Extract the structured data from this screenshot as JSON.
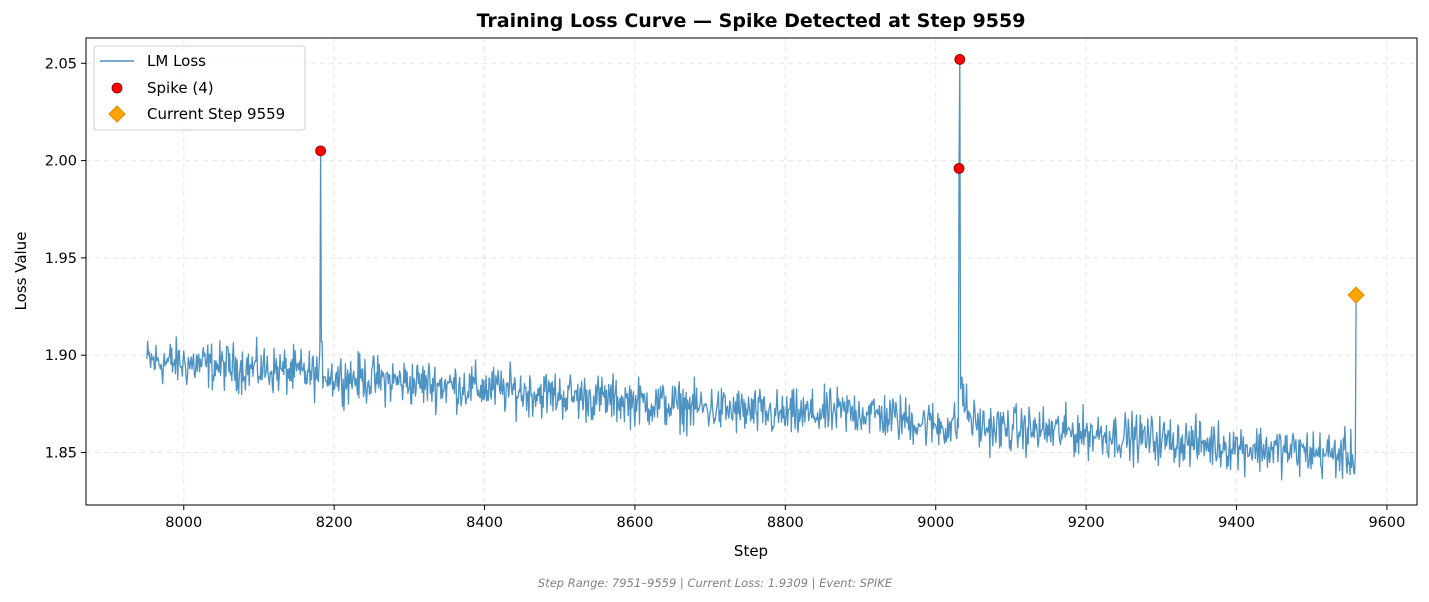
{
  "chart_data": {
    "type": "line",
    "title": "Training Loss Curve — Spike Detected at Step 9559",
    "xlabel": "Step",
    "ylabel": "Loss Value",
    "xlim": [
      7870,
      9640
    ],
    "ylim": [
      1.823,
      2.063
    ],
    "xticks": [
      8000,
      8200,
      8400,
      8600,
      8800,
      9000,
      9200,
      9400,
      9600
    ],
    "yticks": [
      1.85,
      1.9,
      1.95,
      2.0,
      2.05
    ],
    "ytick_labels": [
      "1.85",
      "1.90",
      "1.95",
      "2.00",
      "2.05"
    ],
    "grid": true,
    "legend_position": "upper-left",
    "series": [
      {
        "name": "LM Loss",
        "kind": "line",
        "color": "#1f77b4",
        "step_start": 7951,
        "step_end": 9559,
        "trend_points": [
          {
            "x": 7951,
            "y": 1.897
          },
          {
            "x": 8100,
            "y": 1.893
          },
          {
            "x": 8200,
            "y": 1.889
          },
          {
            "x": 8400,
            "y": 1.883
          },
          {
            "x": 8600,
            "y": 1.876
          },
          {
            "x": 8800,
            "y": 1.869
          },
          {
            "x": 8900,
            "y": 1.871
          },
          {
            "x": 9000,
            "y": 1.864
          },
          {
            "x": 9200,
            "y": 1.86
          },
          {
            "x": 9400,
            "y": 1.853
          },
          {
            "x": 9555,
            "y": 1.848
          }
        ],
        "approximate_noise_amplitude": 0.006,
        "spike_points": [
          {
            "x": 8182,
            "y": 2.005
          },
          {
            "x": 9031,
            "y": 1.996
          },
          {
            "x": 9032,
            "y": 2.052
          },
          {
            "x": 9559,
            "y": 1.9309
          }
        ]
      },
      {
        "name": "Spike (4)",
        "kind": "scatter",
        "color": "#ff0000",
        "points": [
          {
            "x": 8182,
            "y": 2.005
          },
          {
            "x": 9031,
            "y": 1.996
          },
          {
            "x": 9032,
            "y": 2.052
          }
        ]
      },
      {
        "name": "Current Step 9559",
        "kind": "marker",
        "marker": "diamond",
        "color": "#ffa500",
        "points": [
          {
            "x": 9559,
            "y": 1.9309
          }
        ]
      }
    ],
    "footer": "Step Range: 7951–9559 | Current Loss: 1.9309 | Event: SPIKE"
  }
}
